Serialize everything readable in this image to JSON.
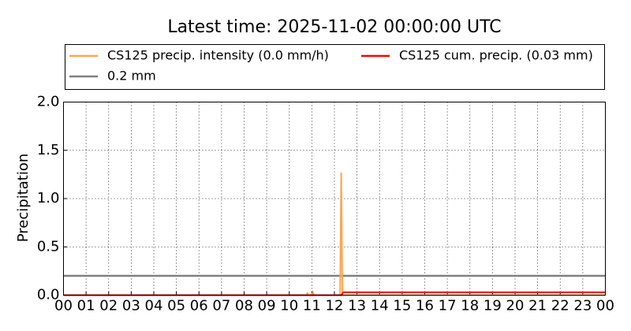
{
  "chart_data": {
    "type": "line",
    "title": "Latest time: 2025-11-02 00:00:00 UTC",
    "y_label": "Precipitation",
    "series": [
      {
        "name": "CS125 precip. intensity (0.0 mm/h)",
        "color": "#ffa54f",
        "x": [
          0,
          10.75,
          10.8,
          10.85,
          11.0,
          11.05,
          11.1,
          12.25,
          12.3,
          12.35,
          24
        ],
        "values": [
          0,
          0,
          0.02,
          0,
          0,
          0.03,
          0,
          0,
          1.27,
          0,
          0
        ]
      },
      {
        "name": "CS125 cum. precip. (0.03 mm)",
        "color": "#ff0000",
        "x": [
          0,
          12.3,
          12.4,
          24
        ],
        "values": [
          0,
          0,
          0.03,
          0.03
        ]
      }
    ],
    "reference_lines": [
      {
        "name": "0.2 mm",
        "value": 0.2,
        "color": "#808080"
      }
    ],
    "xlim": [
      0,
      24
    ],
    "xticks": [
      {
        "value": 0,
        "label": "00"
      },
      {
        "value": 1,
        "label": "01"
      },
      {
        "value": 2,
        "label": "02"
      },
      {
        "value": 3,
        "label": "03"
      },
      {
        "value": 4,
        "label": "04"
      },
      {
        "value": 5,
        "label": "05"
      },
      {
        "value": 6,
        "label": "06"
      },
      {
        "value": 7,
        "label": "07"
      },
      {
        "value": 8,
        "label": "08"
      },
      {
        "value": 9,
        "label": "09"
      },
      {
        "value": 10,
        "label": "10"
      },
      {
        "value": 11,
        "label": "11"
      },
      {
        "value": 12,
        "label": "12"
      },
      {
        "value": 13,
        "label": "13"
      },
      {
        "value": 14,
        "label": "14"
      },
      {
        "value": 15,
        "label": "15"
      },
      {
        "value": 16,
        "label": "16"
      },
      {
        "value": 17,
        "label": "17"
      },
      {
        "value": 18,
        "label": "18"
      },
      {
        "value": 19,
        "label": "19"
      },
      {
        "value": 20,
        "label": "20"
      },
      {
        "value": 21,
        "label": "21"
      },
      {
        "value": 22,
        "label": "22"
      },
      {
        "value": 23,
        "label": "23"
      },
      {
        "value": 24,
        "label": "00"
      }
    ],
    "ylim": [
      0,
      2
    ],
    "yticks": [
      {
        "value": 0,
        "label": "0.0"
      },
      0.5,
      {
        "value": 1,
        "label": "1.0"
      },
      1.5,
      {
        "value": 2,
        "label": "2.0"
      }
    ],
    "grid": true
  }
}
